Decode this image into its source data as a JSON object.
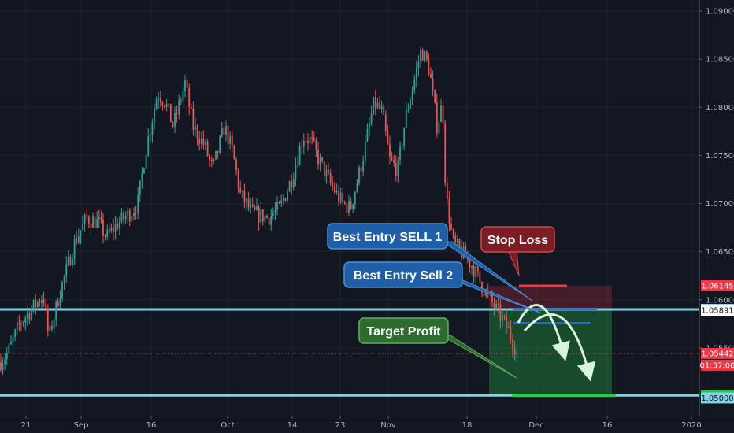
{
  "chart_data": {
    "type": "candlestick",
    "ylim": [
      1.0484,
      1.0912
    ],
    "y_ticks": [
      "1.09000",
      "1.08500",
      "1.08000",
      "1.07500",
      "1.07000",
      "1.06500",
      "1.06000",
      "1.05500",
      "1.05000"
    ],
    "x_ticks": [
      "21",
      "Sep",
      "16",
      "Oct",
      "14",
      "23",
      "Nov",
      "18",
      "Dec",
      "16",
      "2020"
    ],
    "colors": {
      "up": "#26a69a",
      "down": "#ef5350",
      "background": "#131722",
      "grid": "#1f2330"
    },
    "path_anchors": [
      [
        0,
        1.0535
      ],
      [
        10,
        1.0545
      ],
      [
        25,
        1.0575
      ],
      [
        40,
        1.059
      ],
      [
        55,
        1.0605
      ],
      [
        62,
        1.056
      ],
      [
        75,
        1.0605
      ],
      [
        95,
        1.066
      ],
      [
        110,
        1.0685
      ],
      [
        125,
        1.068
      ],
      [
        135,
        1.0665
      ],
      [
        150,
        1.068
      ],
      [
        165,
        1.069
      ],
      [
        175,
        1.07
      ],
      [
        185,
        1.0755
      ],
      [
        200,
        1.0815
      ],
      [
        210,
        1.0805
      ],
      [
        220,
        1.078
      ],
      [
        235,
        1.0825
      ],
      [
        245,
        1.078
      ],
      [
        260,
        1.076
      ],
      [
        270,
        1.0735
      ],
      [
        285,
        1.078
      ],
      [
        295,
        1.0755
      ],
      [
        305,
        1.071
      ],
      [
        320,
        1.069
      ],
      [
        340,
        1.0685
      ],
      [
        355,
        1.0695
      ],
      [
        370,
        1.0725
      ],
      [
        385,
        1.077
      ],
      [
        395,
        1.0765
      ],
      [
        405,
        1.0745
      ],
      [
        420,
        1.072
      ],
      [
        435,
        1.07
      ],
      [
        445,
        1.0695
      ],
      [
        460,
        1.0745
      ],
      [
        475,
        1.0805
      ],
      [
        485,
        1.0795
      ],
      [
        495,
        1.0745
      ],
      [
        505,
        1.0735
      ],
      [
        515,
        1.079
      ],
      [
        525,
        1.0825
      ],
      [
        535,
        1.086
      ],
      [
        545,
        1.084
      ],
      [
        555,
        1.078
      ],
      [
        562,
        1.0805
      ],
      [
        566,
        1.071
      ],
      [
        575,
        1.066
      ],
      [
        590,
        1.0645
      ],
      [
        600,
        1.0635
      ],
      [
        615,
        1.061
      ],
      [
        630,
        1.059
      ],
      [
        645,
        1.057
      ],
      [
        657,
        1.0545
      ]
    ],
    "price_levels": [
      {
        "label": "1.06145",
        "value": 1.06145,
        "tag_color": "#f23645",
        "text_color": "#ffffff"
      },
      {
        "label": "1.05900",
        "value": 1.059,
        "tag_color": "#7fd4e6",
        "text_color": "#131722"
      },
      {
        "label": "1.05891",
        "value": 1.05891,
        "tag_color": "#ffffff",
        "text_color": "#131722"
      },
      {
        "label": "1.05442",
        "value": 1.05442,
        "tag_color": "#f23645",
        "text_color": "#ffffff"
      },
      {
        "label": "01:37:06",
        "value": 1.0532,
        "tag_color": "#f23645",
        "text_color": "#ffffff"
      },
      {
        "label": "1.05006",
        "value": 1.05006,
        "tag_color": "#26c24a",
        "text_color": "#131722"
      },
      {
        "label": "1.05000",
        "value": 1.0498,
        "tag_color": "#7fd4e6",
        "text_color": "#131722"
      }
    ],
    "horizontal_lines": [
      {
        "value": 1.059,
        "color": "#7fd4e6"
      },
      {
        "value": 1.05006,
        "color": "#7fd4e6"
      }
    ],
    "stop_loss": 1.06145,
    "entry_1": 1.059,
    "entry_2": 1.0576,
    "target": 1.05006,
    "annotations": [
      {
        "text": "Best Entry SELL 1",
        "color": "#1e5fa8",
        "border": "#4a90d9"
      },
      {
        "text": "Best Entry Sell 2",
        "color": "#1e5fa8",
        "border": "#4a90d9"
      },
      {
        "text": "Stop Loss",
        "color": "#7a1e24",
        "border": "#c94a52"
      },
      {
        "text": "Target Profit",
        "color": "#2e6b2e",
        "border": "#5fae5f"
      }
    ]
  }
}
